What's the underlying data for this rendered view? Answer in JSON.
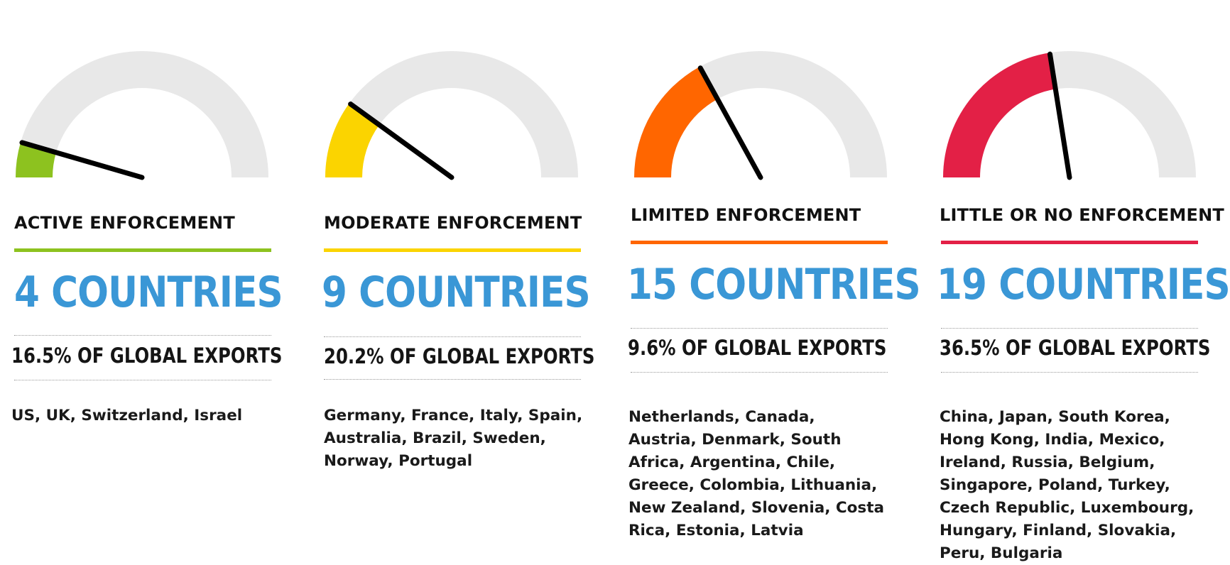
{
  "chart_data": [
    {
      "type": "gauge",
      "label": "ACTIVE ENFORCEMENT",
      "color": "#8dc21f",
      "value": 0.09,
      "count": "4 COUNTRIES",
      "exports": "16.5% OF GLOBAL EXPORTS",
      "countries": "US, UK, Switzerland, Israel"
    },
    {
      "type": "gauge",
      "label": "MODERATE ENFORCEMENT",
      "color": "#fbd400",
      "value": 0.2,
      "count": "9 COUNTRIES",
      "exports": "20.2% OF GLOBAL EXPORTS",
      "countries": "Germany, France, Italy, Spain, Australia, Brazil, Sweden, Norway, Portugal"
    },
    {
      "type": "gauge",
      "label": "LIMITED ENFORCEMENT",
      "color": "#ff6600",
      "value": 0.34,
      "count": "15 COUNTRIES",
      "exports": "9.6% OF GLOBAL EXPORTS",
      "countries": "Netherlands, Canada, Austria, Denmark, South Africa, Argentina, Chile, Greece, Colombia, Lithuania, New Zealand, Slovenia, Costa Rica, Estonia, Latvia"
    },
    {
      "type": "gauge",
      "label": "LITTLE OR NO ENFORCEMENT",
      "color": "#e32046",
      "value": 0.45,
      "count": "19 COUNTRIES",
      "exports": "36.5% OF GLOBAL EXPORTS",
      "countries": "China, Japan, South Korea, Hong Kong, India, Mexico, Ireland, Russia, Belgium, Singapore, Poland, Turkey, Czech Republic, Luxembourg, Hungary, Finland, Slovakia, Peru, Bulgaria"
    }
  ]
}
